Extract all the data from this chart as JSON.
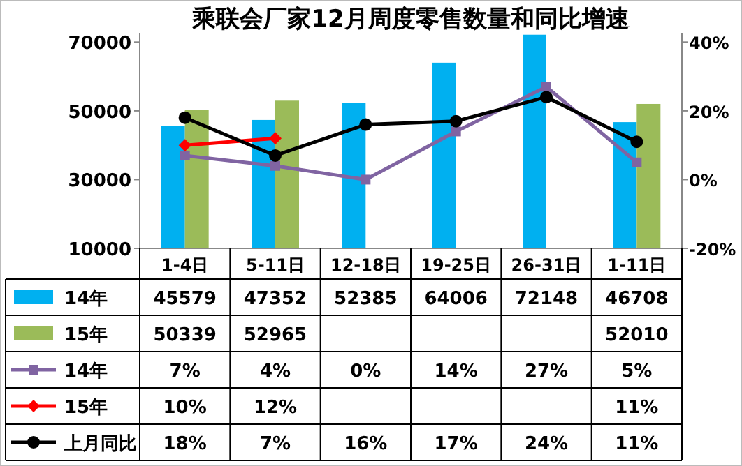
{
  "chart_data": {
    "type": "bar",
    "title": "乘联会厂家12月周度零售数量和同比增速",
    "categories": [
      "1-4日",
      "5-11日",
      "12-18日",
      "19-25日",
      "26-31日",
      "1-11日"
    ],
    "series": [
      {
        "name": "14年",
        "color": "#00b0f0",
        "values": [
          45579,
          47352,
          52385,
          64006,
          72148,
          46708
        ],
        "value_labels": [
          "45579",
          "47352",
          "52385",
          "64006",
          "72148",
          "46708"
        ]
      },
      {
        "name": "15年",
        "color": "#9bbb59",
        "values": [
          50339,
          52965,
          null,
          null,
          null,
          52010
        ],
        "value_labels": [
          "50339",
          "52965",
          null,
          null,
          null,
          "52010"
        ]
      },
      {
        "name": "14年",
        "type": "line",
        "axis": "y2",
        "color": "#8064a2",
        "marker": "square",
        "values": [
          7,
          4,
          0,
          14,
          27,
          5
        ],
        "value_labels": [
          "7%",
          "4%",
          "0%",
          "14%",
          "27%",
          "5%"
        ]
      },
      {
        "name": "15年",
        "type": "line",
        "axis": "y2",
        "color": "#ff0000",
        "marker": "diamond",
        "values": [
          10,
          12,
          null,
          null,
          null,
          null
        ],
        "value_labels": [
          "10%",
          "12%",
          null,
          null,
          null,
          "11%"
        ]
      },
      {
        "name": "上月同比",
        "type": "line",
        "axis": "y2",
        "color": "#000000",
        "marker": "circle",
        "values": [
          18,
          7,
          16,
          17,
          24,
          11
        ],
        "value_labels": [
          "18%",
          "7%",
          "16%",
          "17%",
          "24%",
          "11%"
        ]
      }
    ],
    "ylim": [
      10000,
      72500
    ],
    "yticks": [
      10000,
      30000,
      50000,
      70000
    ],
    "y2lim": [
      -20,
      42.5
    ],
    "y2ticks": [
      {
        "value": -20,
        "label": "-20%"
      },
      {
        "value": 0,
        "label": "0%"
      },
      {
        "value": 20,
        "label": "20%"
      },
      {
        "value": 40,
        "label": "40%"
      }
    ],
    "legend": "left",
    "grid": false
  }
}
